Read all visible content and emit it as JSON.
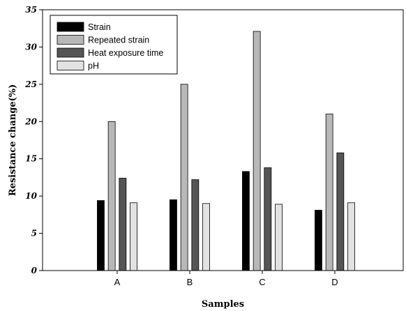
{
  "chart_data": {
    "type": "bar",
    "categories": [
      "A",
      "B",
      "C",
      "D"
    ],
    "series": [
      {
        "name": "Strain",
        "color": "#000000",
        "values": [
          9.4,
          9.5,
          13.3,
          8.1
        ]
      },
      {
        "name": "Repeated strain",
        "color": "#b8b8b8",
        "values": [
          20.0,
          25.0,
          32.1,
          21.0
        ]
      },
      {
        "name": "Heat exposure time",
        "color": "#555555",
        "values": [
          12.4,
          12.2,
          13.8,
          15.8
        ]
      },
      {
        "name": "pH",
        "color": "#e2e2e2",
        "values": [
          9.1,
          9.0,
          8.9,
          9.1
        ]
      }
    ],
    "xlabel": "Samples",
    "ylabel": "Resistance change(%)",
    "ylim": [
      0,
      35
    ],
    "yticks": [
      0,
      5,
      10,
      15,
      20,
      25,
      30,
      35
    ],
    "grid": false,
    "legend_position": "top-left"
  }
}
